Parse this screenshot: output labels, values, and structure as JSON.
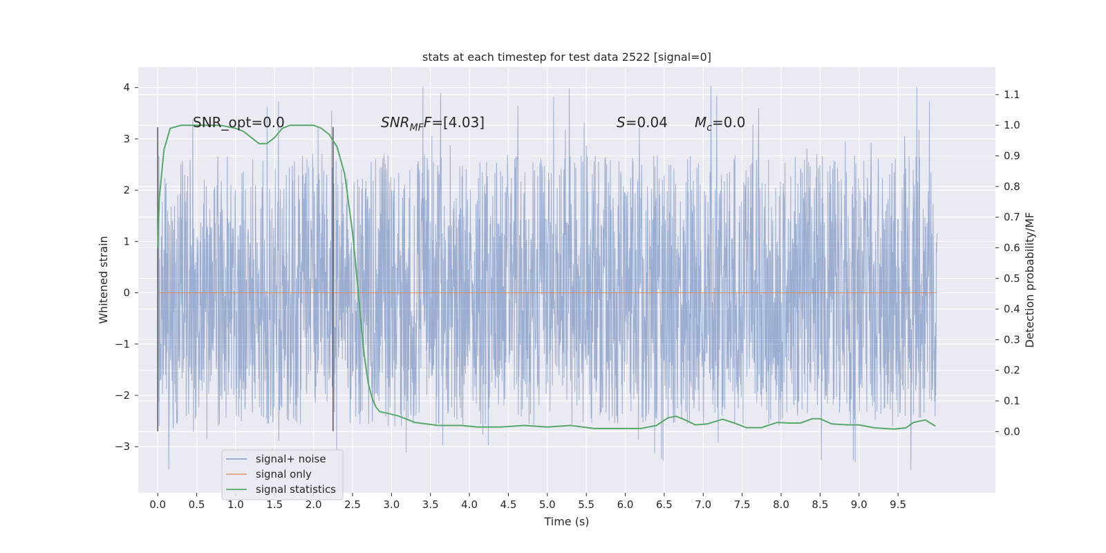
{
  "chart_data": {
    "type": "line",
    "title": "stats at each timestep for test data 2522 [signal=0]",
    "xlabel": "Time (s)",
    "ylabel": "Whitened strain",
    "ylabel_right": "Detection probability/MF",
    "xlim": [
      -0.25,
      10.75
    ],
    "ylim": [
      -3.9,
      4.4
    ],
    "ylim_right": [
      -0.2,
      1.19
    ],
    "x_ticks": [
      "0.0",
      "0.5",
      "1.0",
      "1.5",
      "2.0",
      "2.5",
      "3.0",
      "3.5",
      "4.0",
      "4.5",
      "5.0",
      "5.5",
      "6.0",
      "6.5",
      "7.0",
      "7.5",
      "8.0",
      "8.5",
      "9.0",
      "9.5"
    ],
    "y_ticks": [
      "4",
      "3",
      "2",
      "1",
      "0",
      "−1",
      "−2",
      "−3"
    ],
    "y_ticks_right": [
      "1.1",
      "1.0",
      "0.9",
      "0.8",
      "0.7",
      "0.6",
      "0.5",
      "0.4",
      "0.3",
      "0.2",
      "0.1",
      "0.0"
    ],
    "grid": true,
    "legend_position": "lower-left",
    "colors": {
      "background": "#eaeaf2",
      "signal_noise": "#4c72b0",
      "signal_only": "#dd8452",
      "signal_statistics": "#55a868",
      "vlines": "#555555"
    },
    "series": [
      {
        "name": "signal+ noise",
        "kind": "noise-trace",
        "x_range": [
          0.0,
          10.0
        ],
        "core_band": [
          -1.5,
          1.5
        ],
        "extremes": [
          -3.5,
          4.05
        ]
      },
      {
        "name": "signal only",
        "x": [
          0.0,
          10.0
        ],
        "y": [
          0.0,
          0.0
        ]
      },
      {
        "name": "signal statistics",
        "axis": "right",
        "x": [
          0.0,
          0.02,
          0.08,
          0.16,
          0.3,
          0.5,
          0.8,
          1.0,
          1.1,
          1.2,
          1.3,
          1.4,
          1.5,
          1.6,
          1.7,
          1.85,
          2.0,
          2.1,
          2.2,
          2.3,
          2.4,
          2.5,
          2.55,
          2.6,
          2.65,
          2.7,
          2.75,
          2.8,
          2.85,
          2.95,
          3.1,
          3.3,
          3.6,
          3.9,
          4.1,
          4.4,
          4.7,
          5.0,
          5.3,
          5.6,
          5.9,
          6.2,
          6.4,
          6.55,
          6.65,
          6.75,
          6.9,
          7.05,
          7.25,
          7.4,
          7.55,
          7.75,
          7.95,
          8.1,
          8.25,
          8.4,
          8.5,
          8.65,
          8.85,
          9.0,
          9.2,
          9.45,
          9.6,
          9.7,
          9.85,
          9.98
        ],
        "y": [
          0.6,
          0.76,
          0.92,
          0.99,
          1.0,
          1.0,
          1.0,
          0.99,
          0.98,
          0.96,
          0.94,
          0.94,
          0.96,
          0.99,
          1.0,
          1.0,
          1.0,
          0.99,
          0.97,
          0.93,
          0.84,
          0.65,
          0.52,
          0.38,
          0.25,
          0.16,
          0.11,
          0.08,
          0.065,
          0.06,
          0.05,
          0.03,
          0.02,
          0.02,
          0.015,
          0.015,
          0.02,
          0.015,
          0.02,
          0.01,
          0.01,
          0.01,
          0.02,
          0.045,
          0.05,
          0.04,
          0.022,
          0.025,
          0.04,
          0.028,
          0.013,
          0.013,
          0.03,
          0.028,
          0.028,
          0.042,
          0.042,
          0.025,
          0.022,
          0.022,
          0.012,
          0.008,
          0.012,
          0.03,
          0.038,
          0.018
        ]
      }
    ],
    "vertical_lines": [
      {
        "x": 0.0,
        "y_range": [
          -2.7,
          3.23
        ]
      },
      {
        "x": 2.25,
        "y_range": [
          -2.7,
          3.23
        ]
      }
    ],
    "annotations": {
      "snr_opt": "SNR_opt=0.0",
      "snr_mf_sym": "SNR",
      "snr_mf_sub": "MF",
      "snr_mf_val": "=[4.03]",
      "s_sym": "S",
      "s_val": "=0.04",
      "mc_sym": "M",
      "mc_sub": "c",
      "mc_val": "=0.0"
    }
  }
}
